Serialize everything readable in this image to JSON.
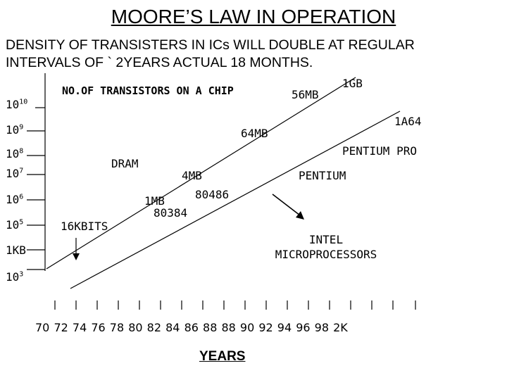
{
  "title": "MOORE’S LAW IN OPERATION",
  "subtitle_line1": "DENSITY OF TRANSISTERS IN ICs WILL DOUBLE AT REGULAR",
  "subtitle_line2": "INTERVALS OF ` 2YEARS ACTUAL 18 MONTHS.",
  "chip_label": "NO.OF TRANSISTORS  ON A CHIP",
  "y_axis": {
    "labels": [
      {
        "base": "10",
        "exp": "10"
      },
      {
        "base": "10",
        "exp": "9"
      },
      {
        "base": "10",
        "exp": "8"
      },
      {
        "base": "10",
        "exp": "7"
      },
      {
        "base": "10",
        "exp": "6"
      },
      {
        "base": "10",
        "exp": "5"
      },
      {
        "base": "1KB",
        "exp": ""
      },
      {
        "base": "10",
        "exp": "3"
      }
    ]
  },
  "dram_series": {
    "name": "DRAM",
    "points": [
      "16KBITS",
      "1MB",
      "4MB",
      "64MB",
      "56MB",
      "1GB"
    ]
  },
  "intel_series": {
    "name_line1": "INTEL",
    "name_line2": "MICROPROCESSORS",
    "points": [
      "80384",
      "80486",
      "PENTIUM",
      "PENTIUM PRO",
      "1A64"
    ]
  },
  "x_axis": {
    "labels_text": "70 72 74 76  78 80 82 84 86 88 88 90  92 94 96 98  2K",
    "title": "YEARS"
  }
}
